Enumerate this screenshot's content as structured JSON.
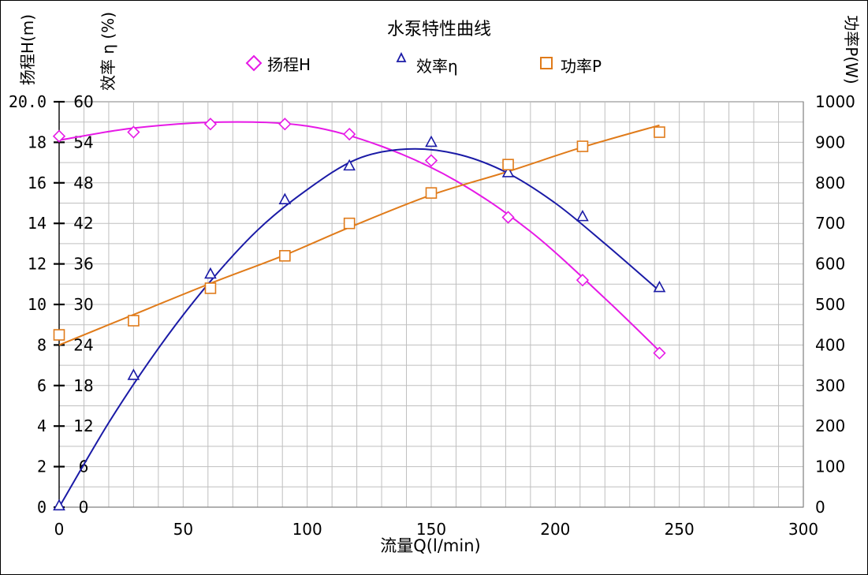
{
  "chart_data": {
    "type": "scatter",
    "title": "水泵特性曲线",
    "xlabel": "流量Q(l/min)",
    "xlim": [
      0,
      300
    ],
    "x_ticks": [
      "0",
      "50",
      "100",
      "150",
      "200",
      "250",
      "300"
    ],
    "grid": true,
    "legend_position": "top",
    "axes": {
      "head": {
        "label": "扬程H(m)",
        "range": [
          0,
          20
        ],
        "ticks": [
          "0",
          "2",
          "4",
          "6",
          "8",
          "10",
          "12",
          "14",
          "16",
          "18",
          "20.0"
        ]
      },
      "efficiency": {
        "label": "效率 η (%)",
        "range": [
          0,
          60
        ],
        "ticks": [
          "0",
          "6",
          "12",
          "18",
          "24",
          "30",
          "36",
          "42",
          "48",
          "54",
          "60"
        ]
      },
      "power": {
        "label": "功率P(W)",
        "range": [
          0,
          1000
        ],
        "ticks": [
          "0",
          "100",
          "200",
          "300",
          "400",
          "500",
          "600",
          "700",
          "800",
          "900",
          "1000"
        ]
      }
    },
    "x": [
      0,
      30,
      61,
      91,
      117,
      150,
      181,
      211,
      242
    ],
    "series": [
      {
        "name": "扬程H",
        "axis": "head",
        "marker": "diamond",
        "color": "#e619e6",
        "values": [
          18.3,
          18.5,
          18.9,
          18.9,
          18.4,
          17.1,
          14.3,
          11.2,
          7.6
        ],
        "fit": [
          [
            0,
            18.1
          ],
          [
            30,
            18.7
          ],
          [
            66,
            19.0
          ],
          [
            100,
            18.8
          ],
          [
            130,
            17.8
          ],
          [
            160,
            16.1
          ],
          [
            190,
            13.6
          ],
          [
            220,
            10.3
          ],
          [
            242,
            7.7
          ]
        ]
      },
      {
        "name": "效率η",
        "axis": "efficiency",
        "marker": "triangle",
        "color": "#1a1aa6",
        "values": [
          0.2,
          19.5,
          34.5,
          45.5,
          50.5,
          54,
          49.5,
          43,
          32.5
        ],
        "fit": [
          [
            0,
            0
          ],
          [
            20,
            12.5
          ],
          [
            40,
            23.5
          ],
          [
            60,
            33
          ],
          [
            80,
            41
          ],
          [
            100,
            47
          ],
          [
            120,
            51.5
          ],
          [
            140,
            53
          ],
          [
            160,
            52.3
          ],
          [
            180,
            49.6
          ],
          [
            200,
            45
          ],
          [
            220,
            39
          ],
          [
            242,
            32
          ]
        ]
      },
      {
        "name": "功率P",
        "axis": "power",
        "marker": "square",
        "color": "#e07b1a",
        "values": [
          425,
          460,
          540,
          620,
          700,
          775,
          845,
          890,
          925
        ],
        "fit": [
          [
            0,
            400
          ],
          [
            30,
            475
          ],
          [
            61,
            552
          ],
          [
            91,
            622
          ],
          [
            117,
            690
          ],
          [
            150,
            770
          ],
          [
            181,
            828
          ],
          [
            211,
            888
          ],
          [
            242,
            942
          ]
        ]
      }
    ]
  }
}
